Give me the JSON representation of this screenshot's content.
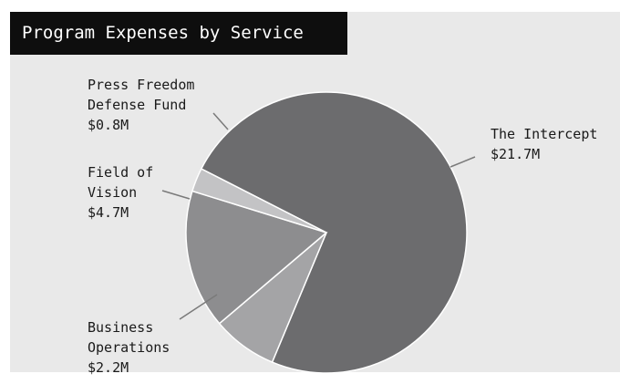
{
  "chart_data": {
    "type": "pie",
    "title": "Program Expenses by Service",
    "slices": [
      {
        "name": "The Intercept",
        "value": 21.7,
        "label": "$21.7M",
        "color": "#6c6c6e"
      },
      {
        "name": "Business Operations",
        "value": 2.2,
        "label": "$2.2M",
        "color": "#a4a4a6"
      },
      {
        "name": "Field of Vision",
        "value": 4.7,
        "label": "$4.7M",
        "color": "#8d8d8f"
      },
      {
        "name": "Press Freedom Defense Fund",
        "value": 0.8,
        "label": "$0.8M",
        "color": "#c3c3c5"
      }
    ],
    "label_lines": [
      [
        "The Intercept",
        "$21.7M"
      ],
      [
        "Business",
        "Operations",
        "$2.2M"
      ],
      [
        "Field of",
        "Vision",
        "$4.7M"
      ],
      [
        "Press Freedom",
        "Defense Fund",
        "$0.8M"
      ]
    ],
    "start_angle_deg": 153,
    "direction": "clockwise"
  },
  "colors": {
    "panel_background": "#e9e9e9",
    "title_background": "#0e0e0e",
    "title_text": "#ffffff",
    "leader_line": "#7a7a7a",
    "label_text": "#1a1a1a"
  }
}
